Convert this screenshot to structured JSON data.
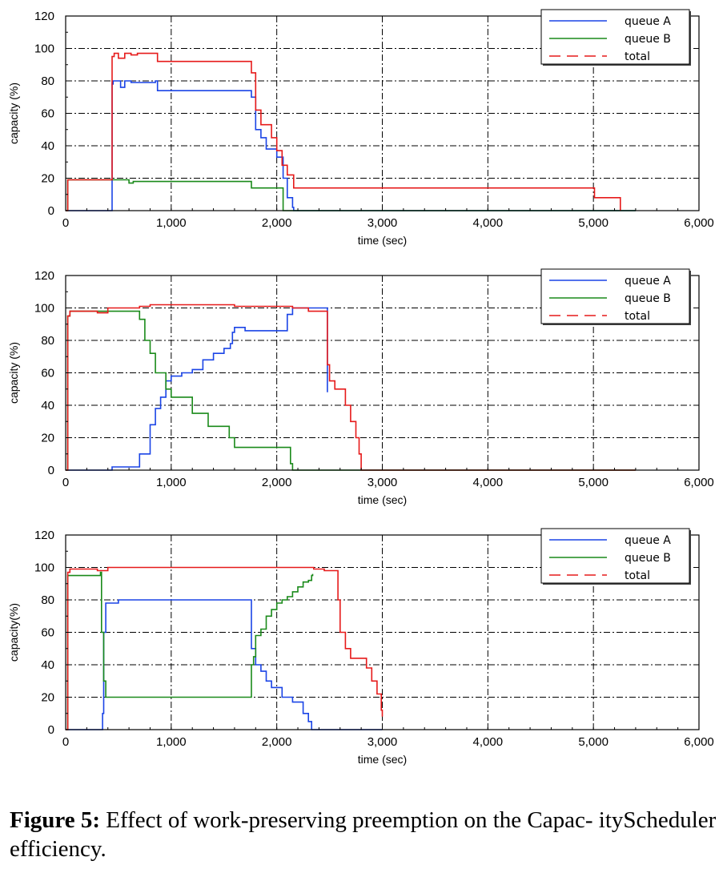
{
  "caption": {
    "label": "Figure 5:",
    "text": " Effect of work-preserving preemption on the Capac- ityScheduler efficiency."
  },
  "colors": {
    "queue_a": "#1a44e6",
    "queue_b": "#1a8a1a",
    "total": "#e61a1a"
  },
  "chart_data": [
    {
      "type": "line",
      "xlabel": "time (sec)",
      "ylabel": "capacity (%)",
      "xlim": [
        0,
        6000
      ],
      "ylim": [
        0,
        120
      ],
      "xticks": [
        0,
        1000,
        2000,
        3000,
        4000,
        5000,
        6000
      ],
      "xtick_labels": [
        "0",
        "1,000",
        "2,000",
        "3,000",
        "4,000",
        "5,000",
        "6,000"
      ],
      "yticks": [
        0,
        20,
        40,
        60,
        80,
        100,
        120
      ],
      "grid": true,
      "legend": "top-right",
      "series": [
        {
          "name": "queue A",
          "style": "solid",
          "color_key": "queue_a",
          "x": [
            0,
            420,
            440,
            450,
            520,
            560,
            620,
            700,
            850,
            870,
            1750,
            1760,
            1800,
            1850,
            1900,
            1950,
            2000,
            2060,
            2100,
            2150,
            2160,
            5400
          ],
          "y": [
            0,
            0,
            78,
            80,
            76,
            80,
            79,
            79,
            80,
            74,
            74,
            70,
            50,
            45,
            38,
            38,
            33,
            20,
            8,
            2,
            0,
            0
          ]
        },
        {
          "name": "queue B",
          "style": "solid",
          "color_key": "queue_b",
          "x": [
            0,
            20,
            440,
            600,
            640,
            1750,
            1760,
            2000,
            2060,
            5400
          ],
          "y": [
            0,
            19,
            19,
            17,
            18,
            18,
            14,
            14,
            0,
            0
          ]
        },
        {
          "name": "total",
          "style": "dashed",
          "color_key": "total",
          "x": [
            0,
            20,
            420,
            440,
            460,
            500,
            560,
            620,
            680,
            850,
            870,
            1750,
            1760,
            1800,
            1850,
            1900,
            1950,
            2000,
            2050,
            2100,
            2150,
            2160,
            5000,
            5010,
            5250,
            5255
          ],
          "y": [
            0,
            19,
            19,
            95,
            97,
            94,
            97,
            96,
            97,
            97,
            92,
            92,
            85,
            62,
            53,
            53,
            45,
            37,
            28,
            22,
            22,
            14,
            14,
            8,
            8,
            0
          ]
        }
      ]
    },
    {
      "type": "line",
      "xlabel": "time (sec)",
      "ylabel": "capacity (%)",
      "xlim": [
        0,
        6000
      ],
      "ylim": [
        0,
        120
      ],
      "xticks": [
        0,
        1000,
        2000,
        3000,
        4000,
        5000,
        6000
      ],
      "xtick_labels": [
        "0",
        "1,000",
        "2,000",
        "3,000",
        "4,000",
        "5,000",
        "6,000"
      ],
      "yticks": [
        0,
        20,
        40,
        60,
        80,
        100,
        120
      ],
      "grid": true,
      "legend": "top-right",
      "series": [
        {
          "name": "queue A",
          "style": "solid",
          "color_key": "queue_a",
          "x": [
            0,
            420,
            440,
            680,
            700,
            800,
            850,
            900,
            950,
            1000,
            1100,
            1200,
            1300,
            1400,
            1500,
            1560,
            1580,
            1600,
            1700,
            2050,
            2100,
            2150,
            2460,
            2480
          ],
          "y": [
            0,
            0,
            2,
            2,
            10,
            28,
            38,
            45,
            55,
            58,
            60,
            62,
            68,
            72,
            75,
            78,
            85,
            88,
            86,
            86,
            96,
            100,
            100,
            48
          ]
        },
        {
          "name": "queue B",
          "style": "solid",
          "color_key": "queue_b",
          "x": [
            0,
            20,
            40,
            500,
            700,
            750,
            800,
            850,
            900,
            950,
            1000,
            1150,
            1200,
            1350,
            1500,
            1550,
            1600,
            2100,
            2130,
            2150,
            5400
          ],
          "y": [
            0,
            95,
            98,
            98,
            93,
            80,
            72,
            60,
            60,
            50,
            45,
            45,
            35,
            27,
            27,
            20,
            14,
            14,
            4,
            0,
            0
          ]
        },
        {
          "name": "total",
          "style": "dashed",
          "color_key": "total",
          "x": [
            0,
            20,
            40,
            300,
            400,
            700,
            800,
            1000,
            1200,
            1400,
            1600,
            2150,
            2300,
            2450,
            2480,
            2500,
            2550,
            2600,
            2650,
            2700,
            2750,
            2780,
            2800,
            2820,
            5400
          ],
          "y": [
            0,
            95,
            98,
            97,
            100,
            101,
            102,
            102,
            102,
            102,
            101,
            100,
            98,
            98,
            65,
            55,
            50,
            50,
            40,
            30,
            20,
            10,
            0,
            0,
            0
          ]
        }
      ]
    },
    {
      "type": "line",
      "xlabel": "time (sec)",
      "ylabel": "capacity(%)",
      "xlim": [
        0,
        6000
      ],
      "ylim": [
        0,
        120
      ],
      "xticks": [
        0,
        1000,
        2000,
        3000,
        4000,
        5000,
        6000
      ],
      "xtick_labels": [
        "0",
        "1,000",
        "2,000",
        "3,000",
        "4,000",
        "5,000",
        "6,000"
      ],
      "yticks": [
        0,
        20,
        40,
        60,
        80,
        100,
        120
      ],
      "grid": true,
      "legend": "top-right",
      "series": [
        {
          "name": "queue A",
          "style": "solid",
          "color_key": "queue_a",
          "x": [
            0,
            330,
            350,
            360,
            380,
            500,
            800,
            1750,
            1760,
            1800,
            1850,
            1900,
            1950,
            2000,
            2050,
            2150,
            2250,
            2300,
            2330,
            3000
          ],
          "y": [
            0,
            0,
            10,
            60,
            78,
            80,
            80,
            80,
            50,
            40,
            36,
            30,
            26,
            26,
            20,
            17,
            10,
            5,
            0,
            0
          ]
        },
        {
          "name": "queue B",
          "style": "solid",
          "color_key": "queue_b",
          "x": [
            0,
            20,
            330,
            340,
            360,
            380,
            1750,
            1760,
            1780,
            1800,
            1850,
            1900,
            1950,
            2000,
            2050,
            2100,
            2150,
            2200,
            2250,
            2300,
            2330,
            2340
          ],
          "y": [
            0,
            95,
            97,
            60,
            30,
            20,
            20,
            40,
            45,
            58,
            62,
            70,
            74,
            78,
            80,
            82,
            85,
            88,
            91,
            92,
            95,
            96
          ]
        },
        {
          "name": "total",
          "style": "dashed",
          "color_key": "total",
          "x": [
            0,
            20,
            40,
            300,
            400,
            800,
            2300,
            2350,
            2450,
            2550,
            2580,
            2600,
            2650,
            2700,
            2800,
            2850,
            2900,
            2950,
            2990,
            3000
          ],
          "y": [
            0,
            97,
            99,
            98,
            100,
            100,
            100,
            99,
            98,
            98,
            80,
            60,
            50,
            44,
            44,
            38,
            30,
            22,
            12,
            8
          ]
        }
      ]
    }
  ]
}
